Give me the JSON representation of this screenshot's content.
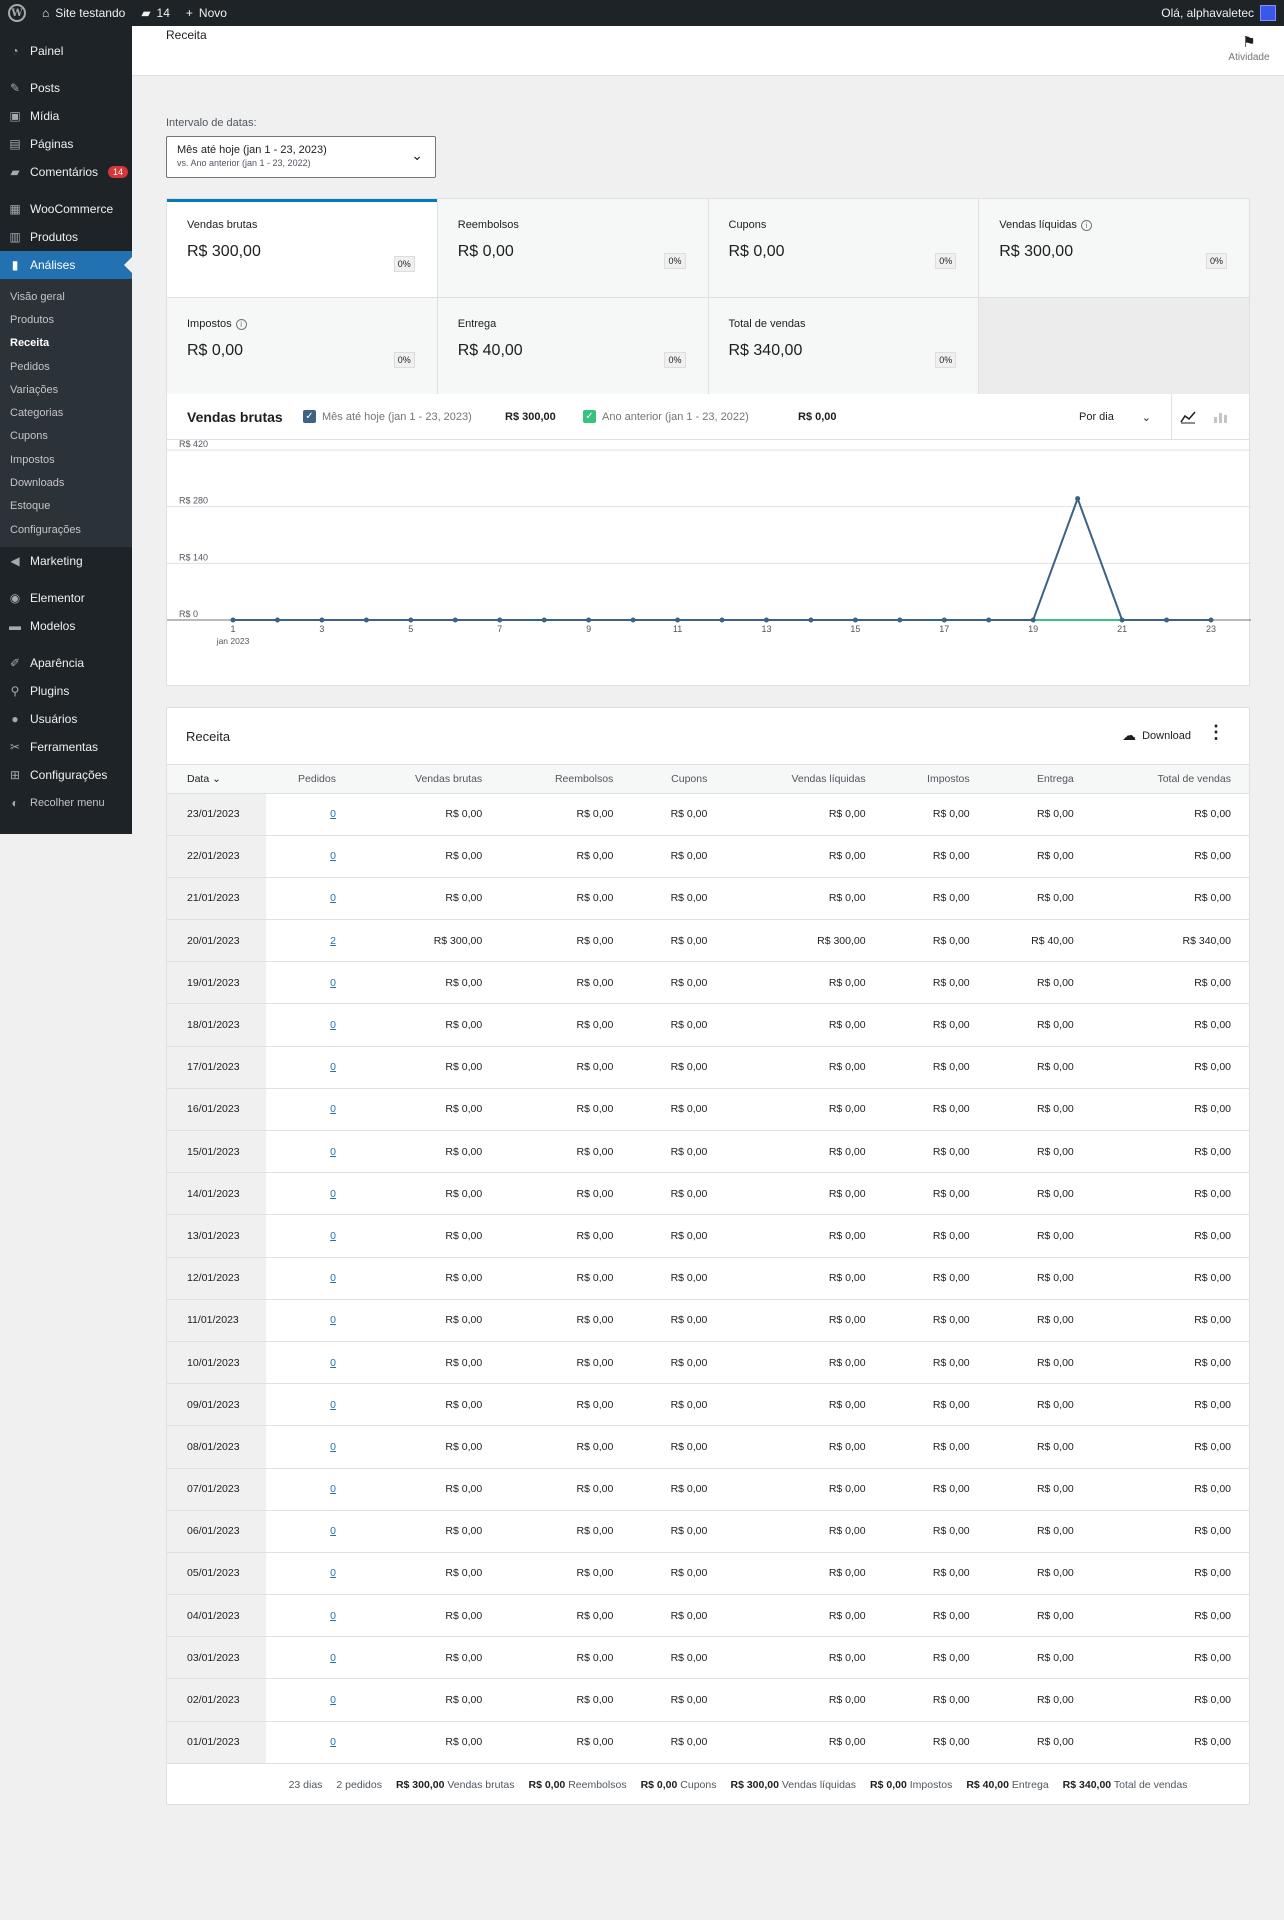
{
  "adminbar": {
    "site_name": "Site testando",
    "comments_count": "14",
    "new_label": "Novo",
    "greeting": "Olá, alphavaletec"
  },
  "sidebar": {
    "items": [
      {
        "label": "Painel",
        "icon": "dashboard-icon"
      },
      {
        "label": "Posts",
        "icon": "pin-icon"
      },
      {
        "label": "Mídia",
        "icon": "media-icon"
      },
      {
        "label": "Páginas",
        "icon": "page-icon"
      },
      {
        "label": "Comentários",
        "icon": "comment-icon",
        "badge": "14"
      },
      {
        "label": "WooCommerce",
        "icon": "woo-icon"
      },
      {
        "label": "Produtos",
        "icon": "archive-icon"
      },
      {
        "label": "Análises",
        "icon": "chart-bar-icon"
      },
      {
        "label": "Marketing",
        "icon": "megaphone-icon"
      },
      {
        "label": "Elementor",
        "icon": "elementor-icon"
      },
      {
        "label": "Modelos",
        "icon": "folder-icon"
      },
      {
        "label": "Aparência",
        "icon": "brush-icon"
      },
      {
        "label": "Plugins",
        "icon": "plug-icon"
      },
      {
        "label": "Usuários",
        "icon": "user-icon"
      },
      {
        "label": "Ferramentas",
        "icon": "wrench-icon"
      },
      {
        "label": "Configurações",
        "icon": "settings-icon"
      },
      {
        "label": "Recolher menu",
        "icon": "collapse-icon"
      }
    ],
    "submenu": [
      "Visão geral",
      "Produtos",
      "Receita",
      "Pedidos",
      "Variações",
      "Categorias",
      "Cupons",
      "Impostos",
      "Downloads",
      "Estoque",
      "Configurações"
    ]
  },
  "header": {
    "title": "Receita",
    "activity_label": "Atividade"
  },
  "date_range": {
    "label": "Intervalo de datas:",
    "primary": "Mês até hoje (jan 1 - 23, 2023)",
    "secondary": "vs. Ano anterior (jan 1 - 23, 2022)"
  },
  "summary": [
    {
      "label": "Vendas brutas",
      "value": "R$ 300,00",
      "delta": "0%"
    },
    {
      "label": "Reembolsos",
      "value": "R$ 0,00",
      "delta": "0%"
    },
    {
      "label": "Cupons",
      "value": "R$ 0,00",
      "delta": "0%"
    },
    {
      "label": "Vendas líquidas",
      "value": "R$ 300,00",
      "delta": "0%"
    },
    {
      "label": "Impostos",
      "value": "R$ 0,00",
      "delta": "0%"
    },
    {
      "label": "Entrega",
      "value": "R$ 40,00",
      "delta": "0%"
    },
    {
      "label": "Total de vendas",
      "value": "R$ 340,00",
      "delta": "0%"
    }
  ],
  "chart_panel": {
    "title": "Vendas brutas",
    "legend_primary": "Mês até hoje (jan 1 - 23, 2023)",
    "legend_primary_total": "R$ 300,00",
    "legend_secondary": "Ano anterior (jan 1 - 23, 2022)",
    "legend_secondary_total": "R$ 0,00",
    "interval": "Por dia",
    "colors": {
      "primary": "#3e6282",
      "secondary": "#39c17f",
      "accent": "#007cba"
    }
  },
  "chart_data": {
    "type": "line",
    "x": [
      1,
      2,
      3,
      4,
      5,
      6,
      7,
      8,
      9,
      10,
      11,
      12,
      13,
      14,
      15,
      16,
      17,
      18,
      19,
      20,
      21,
      22,
      23
    ],
    "series": [
      {
        "name": "Mês até hoje (jan 1 - 23, 2023)",
        "values": [
          0,
          0,
          0,
          0,
          0,
          0,
          0,
          0,
          0,
          0,
          0,
          0,
          0,
          0,
          0,
          0,
          0,
          0,
          0,
          300,
          0,
          0,
          0
        ]
      },
      {
        "name": "Ano anterior (jan 1 - 23, 2022)",
        "values": [
          0,
          0,
          0,
          0,
          0,
          0,
          0,
          0,
          0,
          0,
          0,
          0,
          0,
          0,
          0,
          0,
          0,
          0,
          0,
          0,
          0,
          0,
          0
        ]
      }
    ],
    "y_ticks": [
      "R$ 0",
      "R$ 140",
      "R$ 280",
      "R$ 420"
    ],
    "x_ticks": [
      "1",
      "3",
      "5",
      "7",
      "9",
      "11",
      "13",
      "15",
      "17",
      "19",
      "21",
      "23"
    ],
    "x_sub_label": "jan 2023",
    "ylim": [
      0,
      420
    ],
    "xlim": [
      1,
      23
    ],
    "grid": true
  },
  "table": {
    "title": "Receita",
    "download_label": "Download",
    "columns": [
      "Data",
      "Pedidos",
      "Vendas brutas",
      "Reembolsos",
      "Cupons",
      "Vendas líquidas",
      "Impostos",
      "Entrega",
      "Total de vendas"
    ],
    "rows": [
      [
        "23/01/2023",
        "0",
        "R$ 0,00",
        "R$ 0,00",
        "R$ 0,00",
        "R$ 0,00",
        "R$ 0,00",
        "R$ 0,00",
        "R$ 0,00"
      ],
      [
        "22/01/2023",
        "0",
        "R$ 0,00",
        "R$ 0,00",
        "R$ 0,00",
        "R$ 0,00",
        "R$ 0,00",
        "R$ 0,00",
        "R$ 0,00"
      ],
      [
        "21/01/2023",
        "0",
        "R$ 0,00",
        "R$ 0,00",
        "R$ 0,00",
        "R$ 0,00",
        "R$ 0,00",
        "R$ 0,00",
        "R$ 0,00"
      ],
      [
        "20/01/2023",
        "2",
        "R$ 300,00",
        "R$ 0,00",
        "R$ 0,00",
        "R$ 300,00",
        "R$ 0,00",
        "R$ 40,00",
        "R$ 340,00"
      ],
      [
        "19/01/2023",
        "0",
        "R$ 0,00",
        "R$ 0,00",
        "R$ 0,00",
        "R$ 0,00",
        "R$ 0,00",
        "R$ 0,00",
        "R$ 0,00"
      ],
      [
        "18/01/2023",
        "0",
        "R$ 0,00",
        "R$ 0,00",
        "R$ 0,00",
        "R$ 0,00",
        "R$ 0,00",
        "R$ 0,00",
        "R$ 0,00"
      ],
      [
        "17/01/2023",
        "0",
        "R$ 0,00",
        "R$ 0,00",
        "R$ 0,00",
        "R$ 0,00",
        "R$ 0,00",
        "R$ 0,00",
        "R$ 0,00"
      ],
      [
        "16/01/2023",
        "0",
        "R$ 0,00",
        "R$ 0,00",
        "R$ 0,00",
        "R$ 0,00",
        "R$ 0,00",
        "R$ 0,00",
        "R$ 0,00"
      ],
      [
        "15/01/2023",
        "0",
        "R$ 0,00",
        "R$ 0,00",
        "R$ 0,00",
        "R$ 0,00",
        "R$ 0,00",
        "R$ 0,00",
        "R$ 0,00"
      ],
      [
        "14/01/2023",
        "0",
        "R$ 0,00",
        "R$ 0,00",
        "R$ 0,00",
        "R$ 0,00",
        "R$ 0,00",
        "R$ 0,00",
        "R$ 0,00"
      ],
      [
        "13/01/2023",
        "0",
        "R$ 0,00",
        "R$ 0,00",
        "R$ 0,00",
        "R$ 0,00",
        "R$ 0,00",
        "R$ 0,00",
        "R$ 0,00"
      ],
      [
        "12/01/2023",
        "0",
        "R$ 0,00",
        "R$ 0,00",
        "R$ 0,00",
        "R$ 0,00",
        "R$ 0,00",
        "R$ 0,00",
        "R$ 0,00"
      ],
      [
        "11/01/2023",
        "0",
        "R$ 0,00",
        "R$ 0,00",
        "R$ 0,00",
        "R$ 0,00",
        "R$ 0,00",
        "R$ 0,00",
        "R$ 0,00"
      ],
      [
        "10/01/2023",
        "0",
        "R$ 0,00",
        "R$ 0,00",
        "R$ 0,00",
        "R$ 0,00",
        "R$ 0,00",
        "R$ 0,00",
        "R$ 0,00"
      ],
      [
        "09/01/2023",
        "0",
        "R$ 0,00",
        "R$ 0,00",
        "R$ 0,00",
        "R$ 0,00",
        "R$ 0,00",
        "R$ 0,00",
        "R$ 0,00"
      ],
      [
        "08/01/2023",
        "0",
        "R$ 0,00",
        "R$ 0,00",
        "R$ 0,00",
        "R$ 0,00",
        "R$ 0,00",
        "R$ 0,00",
        "R$ 0,00"
      ],
      [
        "07/01/2023",
        "0",
        "R$ 0,00",
        "R$ 0,00",
        "R$ 0,00",
        "R$ 0,00",
        "R$ 0,00",
        "R$ 0,00",
        "R$ 0,00"
      ],
      [
        "06/01/2023",
        "0",
        "R$ 0,00",
        "R$ 0,00",
        "R$ 0,00",
        "R$ 0,00",
        "R$ 0,00",
        "R$ 0,00",
        "R$ 0,00"
      ],
      [
        "05/01/2023",
        "0",
        "R$ 0,00",
        "R$ 0,00",
        "R$ 0,00",
        "R$ 0,00",
        "R$ 0,00",
        "R$ 0,00",
        "R$ 0,00"
      ],
      [
        "04/01/2023",
        "0",
        "R$ 0,00",
        "R$ 0,00",
        "R$ 0,00",
        "R$ 0,00",
        "R$ 0,00",
        "R$ 0,00",
        "R$ 0,00"
      ],
      [
        "03/01/2023",
        "0",
        "R$ 0,00",
        "R$ 0,00",
        "R$ 0,00",
        "R$ 0,00",
        "R$ 0,00",
        "R$ 0,00",
        "R$ 0,00"
      ],
      [
        "02/01/2023",
        "0",
        "R$ 0,00",
        "R$ 0,00",
        "R$ 0,00",
        "R$ 0,00",
        "R$ 0,00",
        "R$ 0,00",
        "R$ 0,00"
      ],
      [
        "01/01/2023",
        "0",
        "R$ 0,00",
        "R$ 0,00",
        "R$ 0,00",
        "R$ 0,00",
        "R$ 0,00",
        "R$ 0,00",
        "R$ 0,00"
      ]
    ],
    "footer": [
      {
        "value": "23 dias",
        "label": ""
      },
      {
        "value": "2 pedidos",
        "label": ""
      },
      {
        "value": "R$ 300,00",
        "label": "Vendas brutas"
      },
      {
        "value": "R$ 0,00",
        "label": "Reembolsos"
      },
      {
        "value": "R$ 0,00",
        "label": "Cupons"
      },
      {
        "value": "R$ 300,00",
        "label": "Vendas líquidas"
      },
      {
        "value": "R$ 0,00",
        "label": "Impostos"
      },
      {
        "value": "R$ 40,00",
        "label": "Entrega"
      },
      {
        "value": "R$ 340,00",
        "label": "Total de vendas"
      }
    ]
  }
}
